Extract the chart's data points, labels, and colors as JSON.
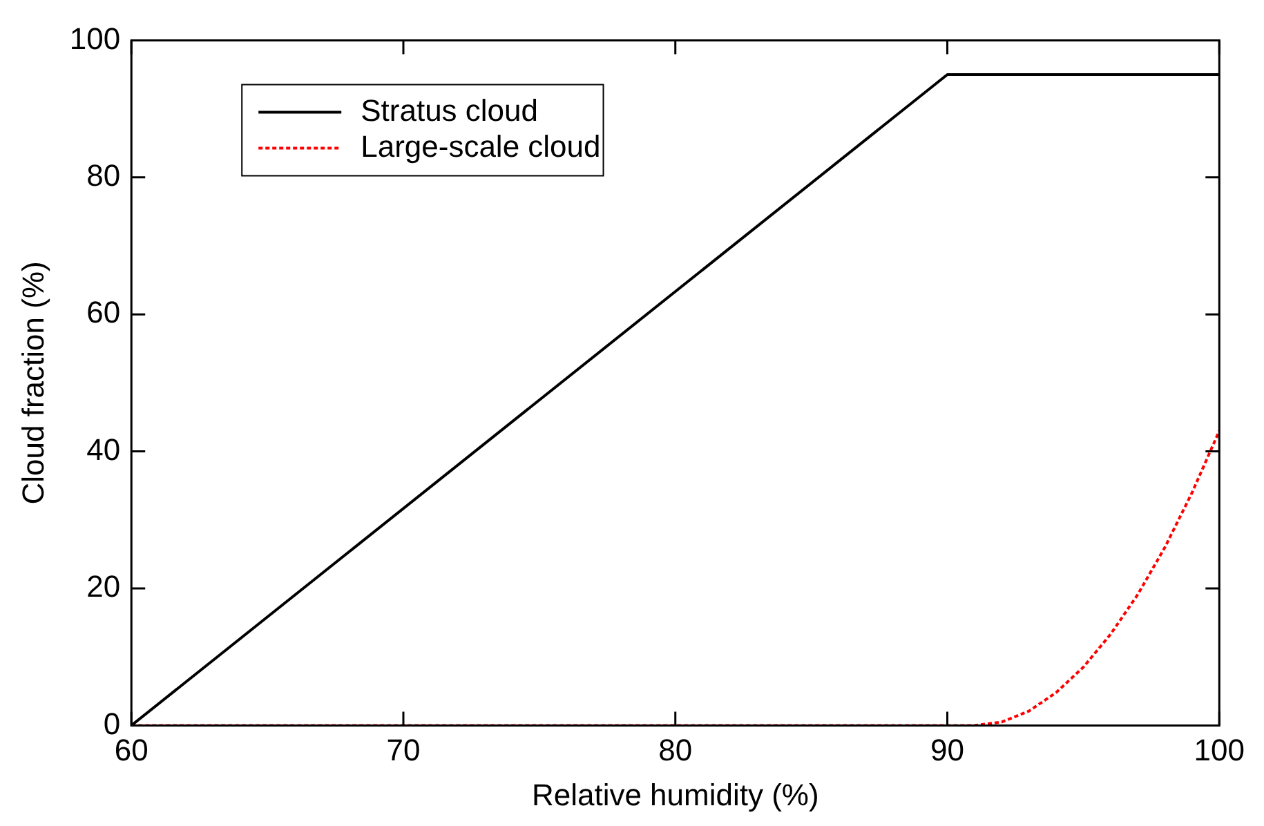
{
  "chart_data": {
    "type": "line",
    "xlabel": "Relative humidity (%)",
    "ylabel": "Cloud fraction (%)",
    "xlim": [
      60,
      100
    ],
    "xticks": [
      60,
      70,
      80,
      90,
      100
    ],
    "ylim": [
      0,
      100
    ],
    "yticks": [
      0,
      20,
      40,
      60,
      80,
      100
    ],
    "grid": false,
    "legend": "top left",
    "marker": "none",
    "series": [
      {
        "name": "Stratus cloud",
        "color": "#000000",
        "line_style": "solid",
        "x": [
          60,
          90,
          100
        ],
        "values": [
          0,
          95,
          95
        ]
      },
      {
        "name": "Large-scale cloud",
        "color": "#ff0000",
        "line_style": "dotted",
        "x": [
          60,
          91,
          92,
          93,
          94,
          95,
          96,
          97,
          98,
          99,
          100
        ],
        "values": [
          0,
          0,
          0.5,
          2.1,
          4.8,
          8.5,
          13.3,
          19.1,
          26,
          34,
          43
        ]
      }
    ]
  }
}
